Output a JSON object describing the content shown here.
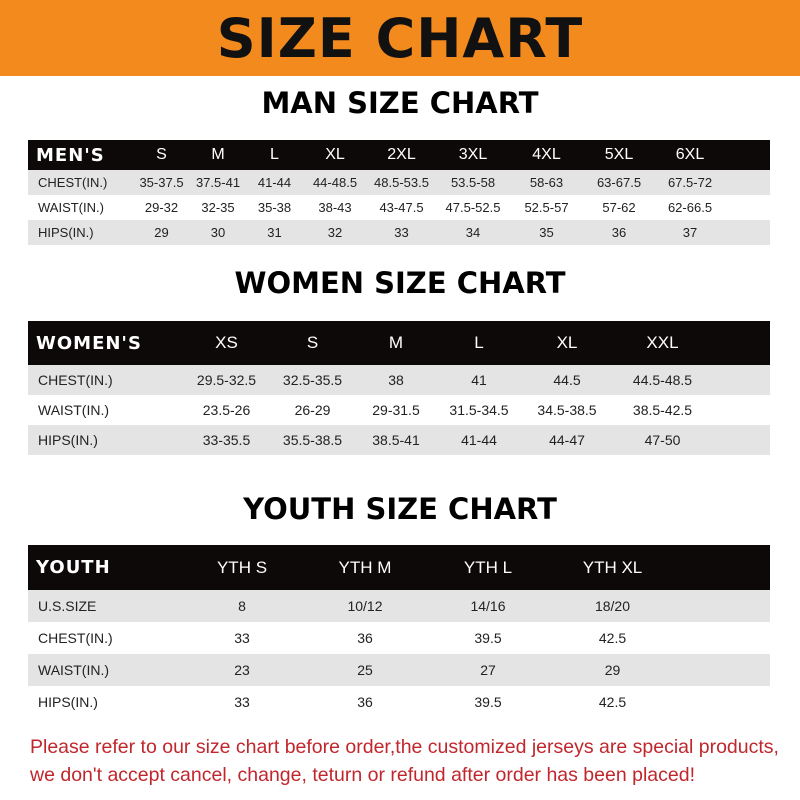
{
  "title": "SIZE CHART",
  "men": {
    "title": "MAN SIZE CHART",
    "header": "MEN'S",
    "sizes": [
      "S",
      "M",
      "L",
      "XL",
      "2XL",
      "3XL",
      "4XL",
      "5XL",
      "6XL"
    ],
    "rows": [
      {
        "label": "CHEST(IN.)",
        "values": [
          "35-37.5",
          "37.5-41",
          "41-44",
          "44-48.5",
          "48.5-53.5",
          "53.5-58",
          "58-63",
          "63-67.5",
          "67.5-72"
        ]
      },
      {
        "label": "WAIST(IN.)",
        "values": [
          "29-32",
          "32-35",
          "35-38",
          "38-43",
          "43-47.5",
          "47.5-52.5",
          "52.5-57",
          "57-62",
          "62-66.5"
        ]
      },
      {
        "label": "HIPS(IN.)",
        "values": [
          "29",
          "30",
          "31",
          "32",
          "33",
          "34",
          "35",
          "36",
          "37"
        ]
      }
    ]
  },
  "women": {
    "title": "WOMEN SIZE CHART",
    "header": "WOMEN'S",
    "sizes": [
      "XS",
      "S",
      "M",
      "L",
      "XL",
      "XXL"
    ],
    "rows": [
      {
        "label": "CHEST(IN.)",
        "values": [
          "29.5-32.5",
          "32.5-35.5",
          "38",
          "41",
          "44.5",
          "44.5-48.5"
        ]
      },
      {
        "label": "WAIST(IN.)",
        "values": [
          "23.5-26",
          "26-29",
          "29-31.5",
          "31.5-34.5",
          "34.5-38.5",
          "38.5-42.5"
        ]
      },
      {
        "label": "HIPS(IN.)",
        "values": [
          "33-35.5",
          "35.5-38.5",
          "38.5-41",
          "41-44",
          "44-47",
          "47-50"
        ]
      }
    ]
  },
  "youth": {
    "title": "YOUTH SIZE CHART",
    "header": "YOUTH",
    "sizes": [
      "YTH S",
      "YTH M",
      "YTH L",
      "YTH XL"
    ],
    "rows": [
      {
        "label": "U.S.SIZE",
        "values": [
          "8",
          "10/12",
          "14/16",
          "18/20"
        ]
      },
      {
        "label": "CHEST(IN.)",
        "values": [
          "33",
          "36",
          "39.5",
          "42.5"
        ]
      },
      {
        "label": "WAIST(IN.)",
        "values": [
          "23",
          "25",
          "27",
          "29"
        ]
      },
      {
        "label": "HIPS(IN.)",
        "values": [
          "33",
          "36",
          "39.5",
          "42.5"
        ]
      }
    ]
  },
  "notice": [
    "Please refer to our size chart before order,the customized jerseys are special products,",
    "we don't accept cancel, change, teturn or refund after order has been placed!"
  ]
}
